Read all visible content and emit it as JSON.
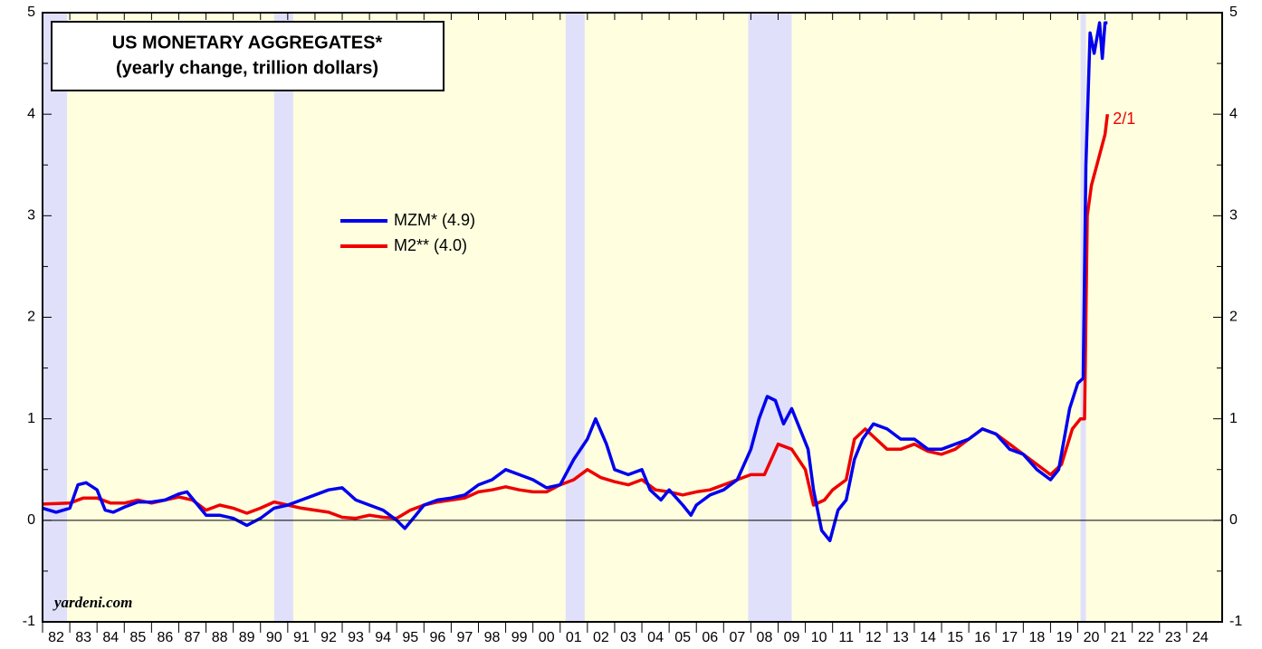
{
  "chart_data": {
    "type": "line",
    "title": "US MONETARY AGGREGATES*",
    "subtitle": "(yearly change, trillion dollars)",
    "source": "yardeni.com",
    "annotation": "2/1",
    "xlim": [
      1982,
      2025.3
    ],
    "ylim": [
      -1,
      5
    ],
    "yticks": [
      -1,
      0,
      1,
      2,
      3,
      4,
      5
    ],
    "xticks": [
      {
        "value": 1982.5,
        "label": "82"
      },
      {
        "value": 1983.5,
        "label": "83"
      },
      {
        "value": 1984.5,
        "label": "84"
      },
      {
        "value": 1985.5,
        "label": "85"
      },
      {
        "value": 1986.5,
        "label": "86"
      },
      {
        "value": 1987.5,
        "label": "87"
      },
      {
        "value": 1988.5,
        "label": "88"
      },
      {
        "value": 1989.5,
        "label": "89"
      },
      {
        "value": 1990.5,
        "label": "90"
      },
      {
        "value": 1991.5,
        "label": "91"
      },
      {
        "value": 1992.5,
        "label": "92"
      },
      {
        "value": 1993.5,
        "label": "93"
      },
      {
        "value": 1994.5,
        "label": "94"
      },
      {
        "value": 1995.5,
        "label": "95"
      },
      {
        "value": 1996.5,
        "label": "96"
      },
      {
        "value": 1997.5,
        "label": "97"
      },
      {
        "value": 1998.5,
        "label": "98"
      },
      {
        "value": 1999.5,
        "label": "99"
      },
      {
        "value": 2000.5,
        "label": "00"
      },
      {
        "value": 2001.5,
        "label": "01"
      },
      {
        "value": 2002.5,
        "label": "02"
      },
      {
        "value": 2003.5,
        "label": "03"
      },
      {
        "value": 2004.5,
        "label": "04"
      },
      {
        "value": 2005.5,
        "label": "05"
      },
      {
        "value": 2006.5,
        "label": "06"
      },
      {
        "value": 2007.5,
        "label": "07"
      },
      {
        "value": 2008.5,
        "label": "08"
      },
      {
        "value": 2009.5,
        "label": "09"
      },
      {
        "value": 2010.5,
        "label": "10"
      },
      {
        "value": 2011.5,
        "label": "11"
      },
      {
        "value": 2012.5,
        "label": "12"
      },
      {
        "value": 2013.5,
        "label": "13"
      },
      {
        "value": 2014.5,
        "label": "14"
      },
      {
        "value": 2015.5,
        "label": "15"
      },
      {
        "value": 2016.5,
        "label": "16"
      },
      {
        "value": 2017.5,
        "label": "17"
      },
      {
        "value": 2018.5,
        "label": "18"
      },
      {
        "value": 2019.5,
        "label": "19"
      },
      {
        "value": 2020.5,
        "label": "20"
      },
      {
        "value": 2021.5,
        "label": "21"
      },
      {
        "value": 2022.5,
        "label": "22"
      },
      {
        "value": 2023.5,
        "label": "23"
      },
      {
        "value": 2024.5,
        "label": "24"
      }
    ],
    "recessions": [
      [
        1982.0,
        1982.9
      ],
      [
        1990.5,
        1991.2
      ],
      [
        2001.2,
        2001.9
      ],
      [
        2007.9,
        2009.5
      ],
      [
        2020.1,
        2020.3
      ]
    ],
    "series": [
      {
        "name": "MZM* (4.9)",
        "color": "#0000ee",
        "x": [
          1982.0,
          1982.5,
          1983.0,
          1983.3,
          1983.6,
          1984.0,
          1984.3,
          1984.6,
          1985.0,
          1985.5,
          1986.0,
          1986.5,
          1987.0,
          1987.3,
          1987.7,
          1988.0,
          1988.5,
          1989.0,
          1989.5,
          1990.0,
          1990.5,
          1991.0,
          1991.5,
          1992.0,
          1992.5,
          1993.0,
          1993.5,
          1994.0,
          1994.5,
          1995.0,
          1995.3,
          1995.7,
          1996.0,
          1996.5,
          1997.0,
          1997.5,
          1998.0,
          1998.5,
          1999.0,
          1999.5,
          2000.0,
          2000.5,
          2001.0,
          2001.5,
          2002.0,
          2002.3,
          2002.7,
          2003.0,
          2003.5,
          2004.0,
          2004.3,
          2004.7,
          2005.0,
          2005.5,
          2005.8,
          2006.0,
          2006.5,
          2007.0,
          2007.5,
          2008.0,
          2008.3,
          2008.6,
          2008.9,
          2009.2,
          2009.5,
          2009.8,
          2010.1,
          2010.3,
          2010.6,
          2010.9,
          2011.2,
          2011.5,
          2011.8,
          2012.1,
          2012.5,
          2013.0,
          2013.5,
          2014.0,
          2014.5,
          2015.0,
          2015.5,
          2016.0,
          2016.5,
          2017.0,
          2017.5,
          2018.0,
          2018.5,
          2019.0,
          2019.3,
          2019.7,
          2020.0,
          2020.2,
          2020.3,
          2020.45,
          2020.6,
          2020.8,
          2020.9,
          2021.0,
          2021.09
        ],
        "values": [
          0.12,
          0.08,
          0.12,
          0.35,
          0.37,
          0.3,
          0.1,
          0.08,
          0.13,
          0.18,
          0.18,
          0.2,
          0.26,
          0.28,
          0.15,
          0.05,
          0.05,
          0.02,
          -0.05,
          0.02,
          0.12,
          0.15,
          0.2,
          0.25,
          0.3,
          0.32,
          0.2,
          0.15,
          0.1,
          0.0,
          -0.08,
          0.05,
          0.15,
          0.2,
          0.22,
          0.25,
          0.35,
          0.4,
          0.5,
          0.45,
          0.4,
          0.32,
          0.35,
          0.6,
          0.8,
          1.0,
          0.75,
          0.5,
          0.45,
          0.5,
          0.3,
          0.2,
          0.3,
          0.15,
          0.05,
          0.15,
          0.25,
          0.3,
          0.4,
          0.7,
          1.0,
          1.22,
          1.18,
          0.95,
          1.1,
          0.9,
          0.7,
          0.3,
          -0.1,
          -0.2,
          0.1,
          0.2,
          0.6,
          0.8,
          0.95,
          0.9,
          0.8,
          0.8,
          0.7,
          0.7,
          0.75,
          0.8,
          0.9,
          0.85,
          0.7,
          0.65,
          0.5,
          0.4,
          0.5,
          1.1,
          1.35,
          1.4,
          3.5,
          4.8,
          4.6,
          4.9,
          4.55,
          4.9,
          4.9
        ]
      },
      {
        "name": "M2** (4.0)",
        "color": "#ee0000",
        "x": [
          1982.0,
          1983.0,
          1983.5,
          1984.0,
          1984.5,
          1985.0,
          1985.5,
          1986.0,
          1986.5,
          1987.0,
          1987.5,
          1988.0,
          1988.5,
          1989.0,
          1989.5,
          1990.0,
          1990.5,
          1991.0,
          1991.5,
          1992.0,
          1992.5,
          1993.0,
          1993.5,
          1994.0,
          1994.5,
          1995.0,
          1995.5,
          1996.0,
          1996.5,
          1997.0,
          1997.5,
          1998.0,
          1998.5,
          1999.0,
          1999.5,
          2000.0,
          2000.5,
          2001.0,
          2001.5,
          2002.0,
          2002.5,
          2003.0,
          2003.5,
          2004.0,
          2004.5,
          2005.0,
          2005.5,
          2006.0,
          2006.5,
          2007.0,
          2007.5,
          2008.0,
          2008.5,
          2009.0,
          2009.5,
          2010.0,
          2010.3,
          2010.7,
          2011.0,
          2011.5,
          2011.8,
          2012.2,
          2012.6,
          2013.0,
          2013.5,
          2014.0,
          2014.5,
          2015.0,
          2015.5,
          2016.0,
          2016.5,
          2017.0,
          2017.5,
          2018.0,
          2018.5,
          2019.0,
          2019.4,
          2019.8,
          2020.1,
          2020.25,
          2020.35,
          2020.5,
          2020.7,
          2020.9,
          2021.0,
          2021.09
        ],
        "values": [
          0.16,
          0.17,
          0.22,
          0.22,
          0.17,
          0.17,
          0.2,
          0.17,
          0.2,
          0.23,
          0.2,
          0.1,
          0.15,
          0.12,
          0.07,
          0.12,
          0.18,
          0.15,
          0.12,
          0.1,
          0.08,
          0.03,
          0.02,
          0.05,
          0.03,
          0.02,
          0.1,
          0.15,
          0.18,
          0.2,
          0.22,
          0.28,
          0.3,
          0.33,
          0.3,
          0.28,
          0.28,
          0.35,
          0.4,
          0.5,
          0.42,
          0.38,
          0.35,
          0.4,
          0.3,
          0.28,
          0.25,
          0.28,
          0.3,
          0.35,
          0.4,
          0.45,
          0.45,
          0.75,
          0.7,
          0.5,
          0.15,
          0.2,
          0.3,
          0.4,
          0.8,
          0.9,
          0.8,
          0.7,
          0.7,
          0.75,
          0.68,
          0.65,
          0.7,
          0.8,
          0.9,
          0.85,
          0.75,
          0.65,
          0.55,
          0.45,
          0.55,
          0.9,
          1.0,
          1.0,
          3.0,
          3.3,
          3.5,
          3.7,
          3.8,
          4.0
        ]
      }
    ]
  }
}
